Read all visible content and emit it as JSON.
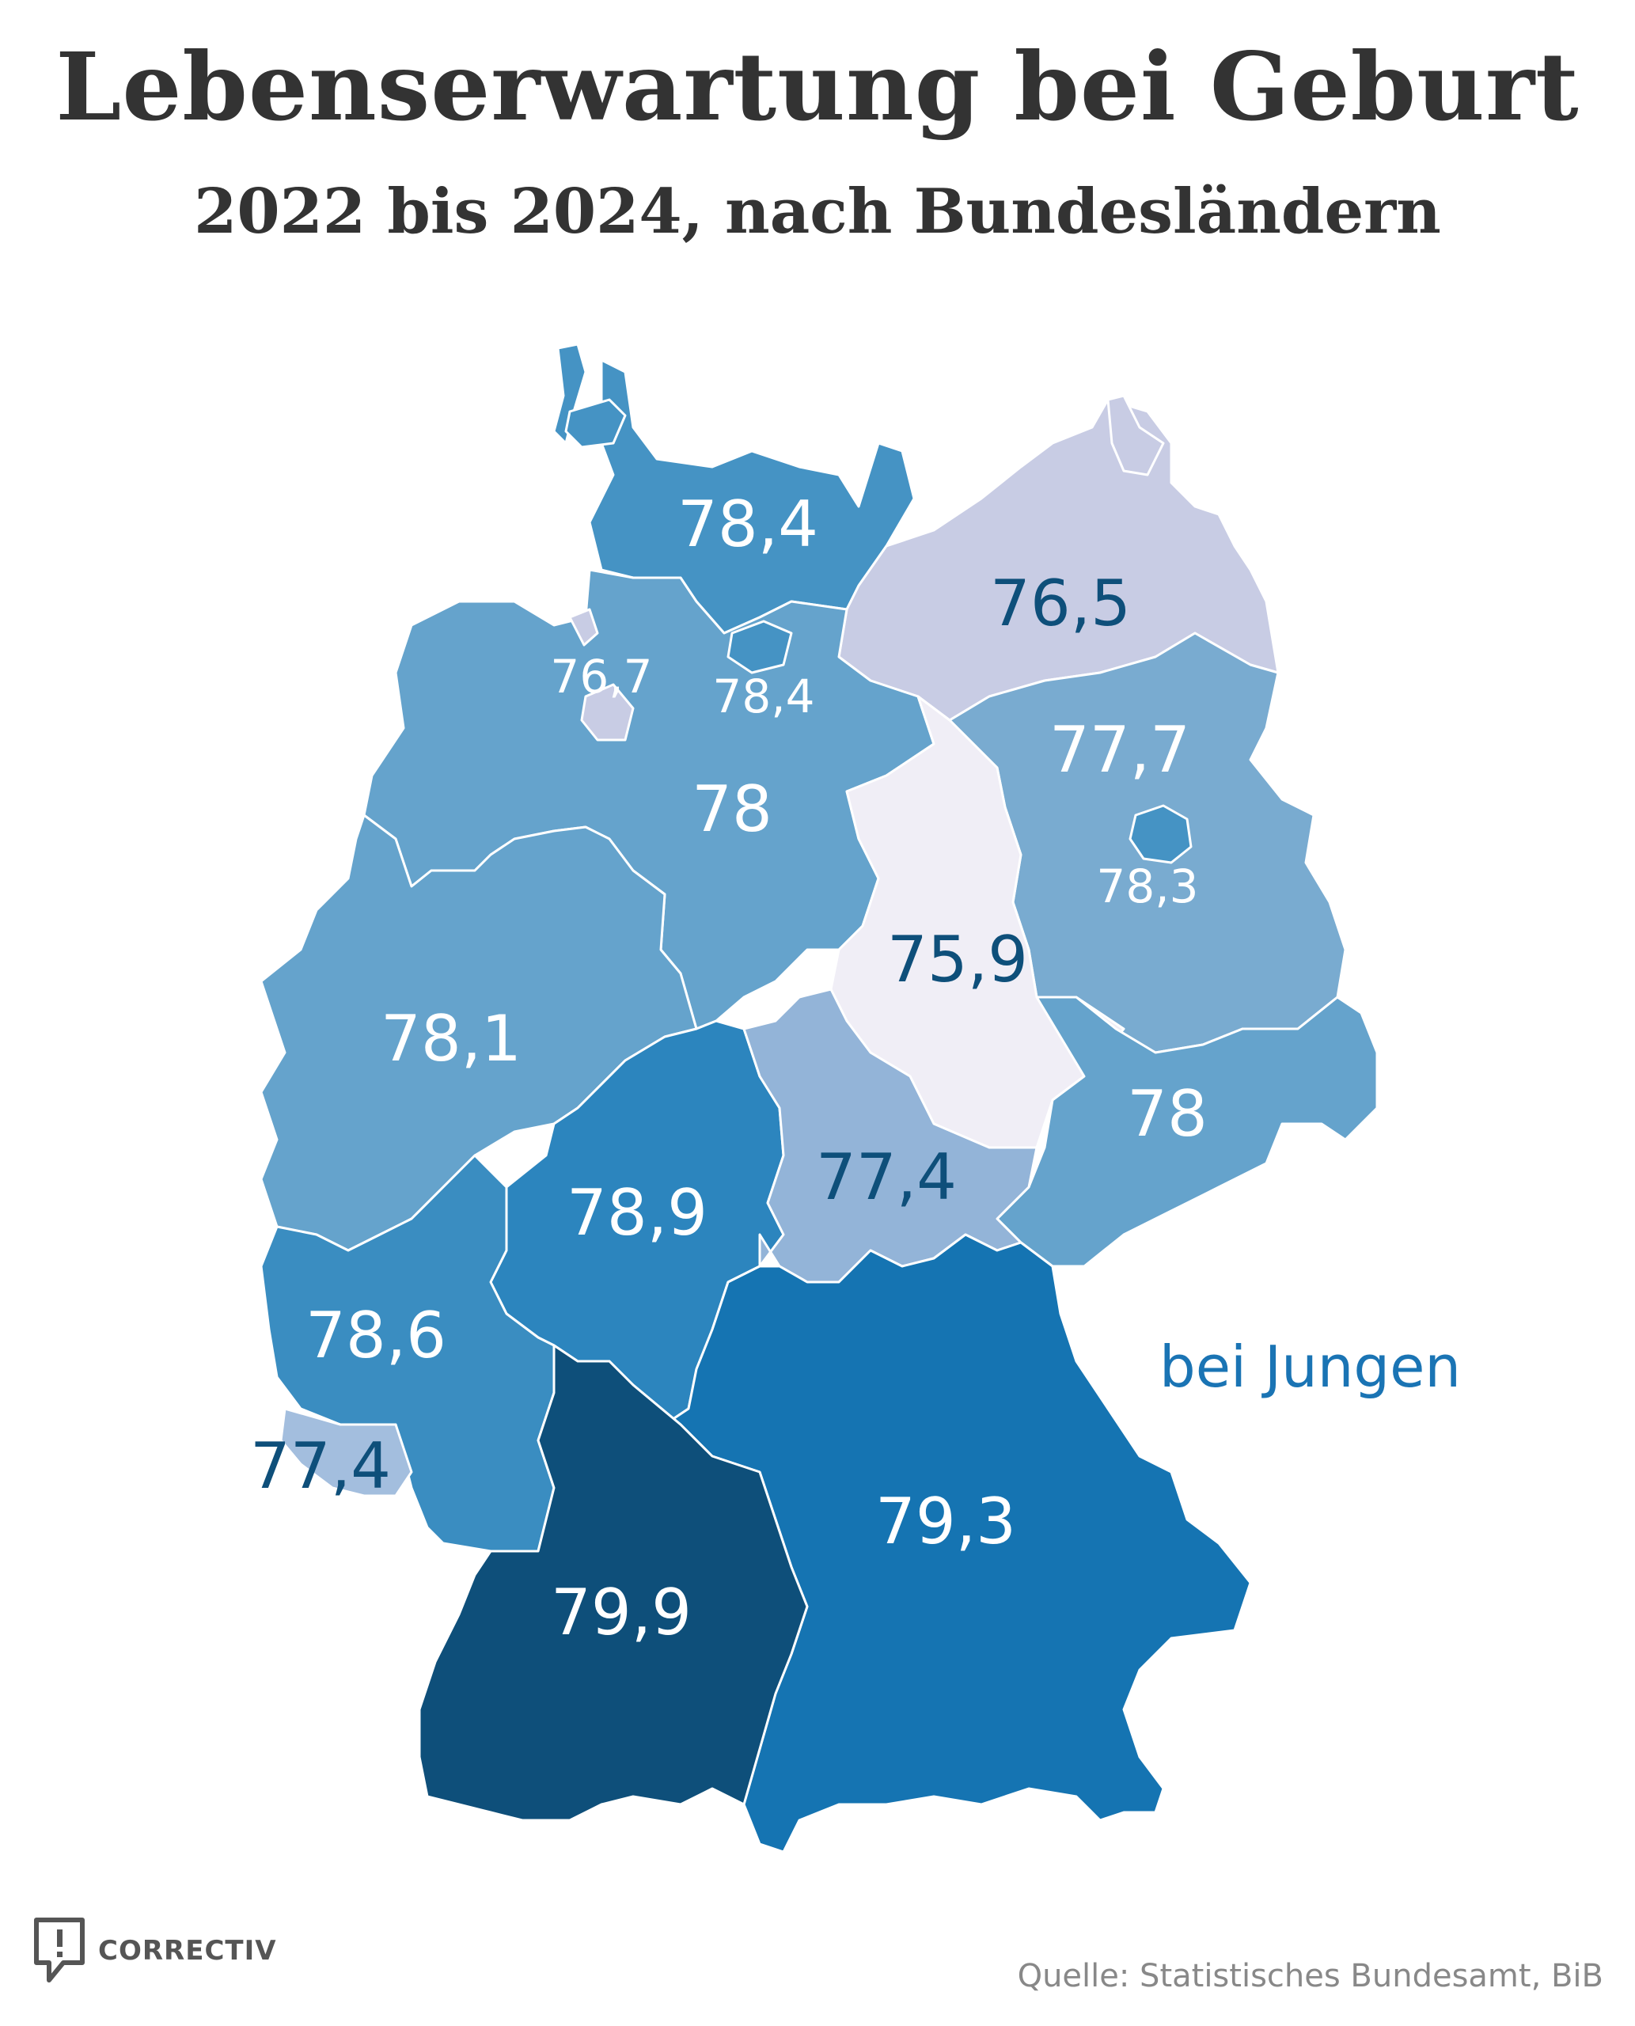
{
  "header": {
    "title": "Lebenserwartung bei Geburt",
    "subtitle": "2022 bis 2024, nach Bundesländern"
  },
  "legend_note": "bei Jungen",
  "source": "Quelle: Statistisches Bundesamt, BiB",
  "logo": {
    "text": "CORRECTIV",
    "icon": "correctiv-logo-icon"
  },
  "colors": {
    "accent_text": "#1a74b4",
    "dark_label": "#0e4f7a",
    "light_label": "#ffffff"
  },
  "regions": [
    {
      "id": "schleswig-holstein",
      "value": "78,4",
      "fill": "#4593c4",
      "label_color": "#ffffff"
    },
    {
      "id": "mecklenburg-vorpommern",
      "value": "76,5",
      "fill": "#c8cce4",
      "label_color": "#0e4f7a"
    },
    {
      "id": "hamburg",
      "value": "78,4",
      "fill": "#4593c4",
      "label_color": "#ffffff"
    },
    {
      "id": "bremen",
      "value": "76,7",
      "fill": "#c8cce4",
      "label_color": "#ffffff"
    },
    {
      "id": "niedersachsen",
      "value": "78",
      "fill": "#65a3cc",
      "label_color": "#ffffff"
    },
    {
      "id": "brandenburg",
      "value": "77,7",
      "fill": "#79abd0",
      "label_color": "#ffffff"
    },
    {
      "id": "berlin",
      "value": "78,3",
      "fill": "#4593c4",
      "label_color": "#ffffff"
    },
    {
      "id": "sachsen-anhalt",
      "value": "75,9",
      "fill": "#f0eef6",
      "label_color": "#0e4f7a"
    },
    {
      "id": "nordrhein-westfalen",
      "value": "78,1",
      "fill": "#65a3cc",
      "label_color": "#ffffff"
    },
    {
      "id": "sachsen",
      "value": "78",
      "fill": "#65a3cc",
      "label_color": "#ffffff"
    },
    {
      "id": "hessen",
      "value": "78,9",
      "fill": "#2c85be",
      "label_color": "#ffffff"
    },
    {
      "id": "thueringen",
      "value": "77,4",
      "fill": "#93b4d8",
      "label_color": "#0e4f7a"
    },
    {
      "id": "rheinland-pfalz",
      "value": "78,6",
      "fill": "#3a8dc1",
      "label_color": "#ffffff"
    },
    {
      "id": "saarland",
      "value": "77,4",
      "fill": "#a3bede",
      "label_color": "#0e4f7a"
    },
    {
      "id": "bayern",
      "value": "79,3",
      "fill": "#1574b2",
      "label_color": "#ffffff"
    },
    {
      "id": "baden-wuerttemberg",
      "value": "79,9",
      "fill": "#0e4f7a",
      "label_color": "#ffffff"
    }
  ]
}
